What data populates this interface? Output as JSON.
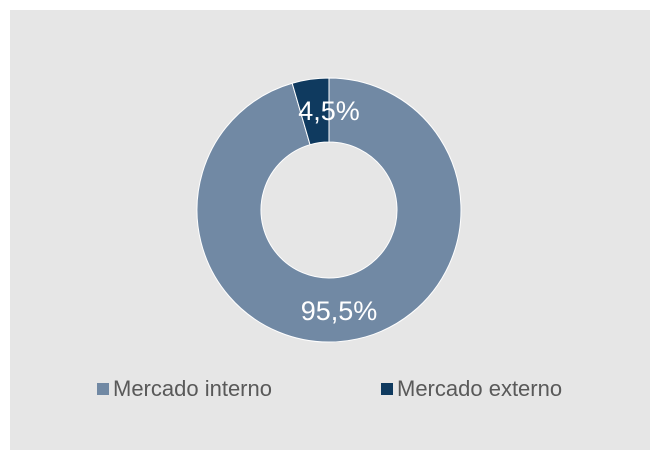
{
  "chart_data": {
    "type": "pie",
    "categories": [
      "Mercado interno",
      "Mercado externo"
    ],
    "values": [
      95.5,
      4.5
    ],
    "data_labels": [
      "95,5%",
      "4,5%"
    ],
    "unit": "%",
    "donut": true,
    "colors": [
      "#7189a4",
      "#0f3a5f"
    ],
    "legend": "bottom"
  },
  "legend": {
    "items": [
      {
        "label": "Mercado interno",
        "color": "#7189a4"
      },
      {
        "label": "Mercado externo",
        "color": "#0f3a5f"
      }
    ]
  },
  "panel": {
    "background": "#e6e6e6"
  }
}
